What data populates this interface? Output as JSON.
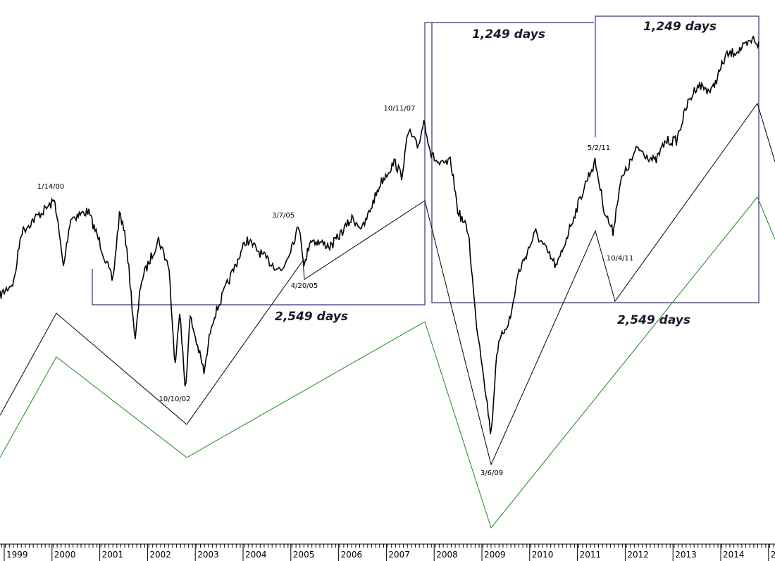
{
  "chart_data": {
    "type": "line",
    "categories": [
      "1999",
      "2000",
      "2001",
      "2002",
      "2003",
      "2004",
      "2005",
      "2006",
      "2007",
      "2008",
      "2009",
      "2010",
      "2011",
      "2012",
      "2013",
      "2014",
      "2"
    ],
    "annotations": [
      "1/14/00",
      "10/10/02",
      "3/7/05",
      "4/20/05",
      "10/11/07",
      "3/6/09",
      "5/2/11",
      "10/4/11",
      "2,549 days",
      "2,549 days",
      "1,249 days",
      "1,249 days"
    ]
  }
}
